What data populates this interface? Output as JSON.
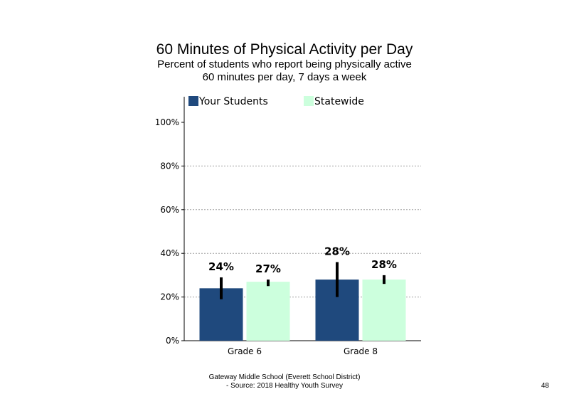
{
  "chart_data": {
    "type": "bar",
    "title": "60 Minutes of Physical Activity per Day",
    "subtitle": [
      "Percent of students who report being physically active",
      "60 minutes per day, 7 days a week"
    ],
    "categories": [
      "Grade 6",
      "Grade 8"
    ],
    "series": [
      {
        "name": "Your Students",
        "color": "#1f497d",
        "values": [
          24,
          28
        ],
        "labels": [
          "24%",
          "28%"
        ],
        "error": [
          [
            19,
            29
          ],
          [
            20,
            36
          ]
        ]
      },
      {
        "name": "Statewide",
        "color": "#ccffdd",
        "values": [
          27,
          28
        ],
        "labels": [
          "27%",
          "28%"
        ],
        "error": [
          [
            25,
            28
          ],
          [
            26,
            30
          ]
        ]
      }
    ],
    "y_ticks": [
      "0%",
      "20%",
      "40%",
      "60%",
      "80%",
      "100%"
    ],
    "ylim": [
      0,
      100
    ],
    "grid": true,
    "legend": "top"
  },
  "footer": {
    "line1": "Gateway Middle School (Everett School District)",
    "line2": "- Source: 2018 Healthy Youth Survey"
  },
  "page_number": "48"
}
